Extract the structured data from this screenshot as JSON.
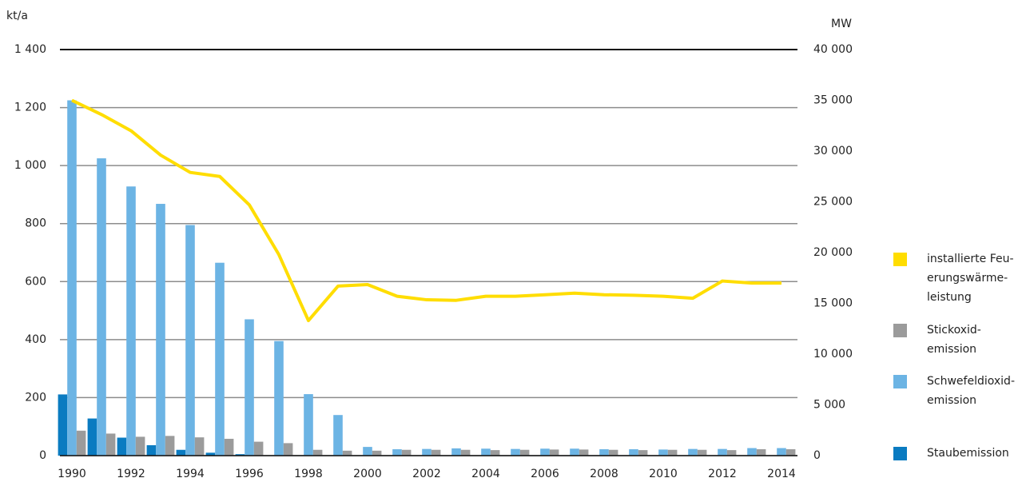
{
  "chart_data": {
    "type": "bar-line",
    "y_label": "kt/a",
    "y2_label": "MW",
    "categories": [
      "1990",
      null,
      "1992",
      null,
      "1994",
      null,
      "1996",
      null,
      "1998",
      null,
      "2000",
      null,
      "2002",
      null,
      "2004",
      null,
      "2006",
      null,
      "2008",
      null,
      "2010",
      null,
      "2012",
      null,
      "2014"
    ],
    "series": [
      {
        "name": "installierte Feu­erungswärme­leistung",
        "type": "line",
        "axis": "y2",
        "color": "#ffdd00",
        "values": [
          35000,
          33600,
          32000,
          29600,
          27900,
          27500,
          24700,
          19800,
          13300,
          16700,
          16850,
          15700,
          15350,
          15300,
          15700,
          15700,
          15850,
          16000,
          15850,
          15800,
          15700,
          15500,
          17200,
          17000,
          17000
        ]
      },
      {
        "name": "Stickoxid­emission",
        "type": "bar",
        "color": "#9b9b9b",
        "values": [
          86,
          76,
          65,
          68,
          63,
          58,
          48,
          43,
          20,
          17,
          17,
          20,
          20,
          20,
          19,
          20,
          21,
          21,
          20,
          19,
          20,
          20,
          19,
          22,
          22
        ]
      },
      {
        "name": "Schwefel­dioxid­emission",
        "type": "bar",
        "color": "#6cb4e4",
        "values": [
          1225,
          1025,
          928,
          868,
          795,
          665,
          470,
          395,
          212,
          140,
          30,
          22,
          23,
          25,
          24,
          23,
          24,
          24,
          22,
          22,
          21,
          23,
          23,
          26,
          26
        ]
      },
      {
        "name": "Staubemission",
        "type": "bar",
        "color": "#0a7bc1",
        "values": [
          211,
          128,
          62,
          36,
          20,
          10,
          5,
          1,
          0,
          0,
          0,
          0,
          0,
          0,
          0,
          0,
          0,
          0,
          0,
          0,
          0,
          0,
          0,
          0,
          0
        ]
      }
    ],
    "ylim": [
      0,
      1400
    ],
    "yticks": [
      0,
      200,
      400,
      600,
      800,
      {
        "value": 1000,
        "label": "1 000"
      },
      {
        "value": 1200,
        "label": "1 200"
      },
      {
        "value": 1400,
        "label": "1 400"
      }
    ],
    "y2lim": [
      0,
      40000
    ],
    "y2ticks": [
      0,
      {
        "value": 5000,
        "label": "5 000"
      },
      {
        "value": 10000,
        "label": "10 000"
      },
      {
        "value": 15000,
        "label": "15 000"
      },
      {
        "value": 20000,
        "label": "20 000"
      },
      {
        "value": 25000,
        "label": "25 000"
      },
      {
        "value": 30000,
        "label": "30 000"
      },
      {
        "value": 35000,
        "label": "35 000"
      },
      {
        "value": 40000,
        "label": "40 000"
      }
    ],
    "grid": true,
    "legend": "right"
  }
}
